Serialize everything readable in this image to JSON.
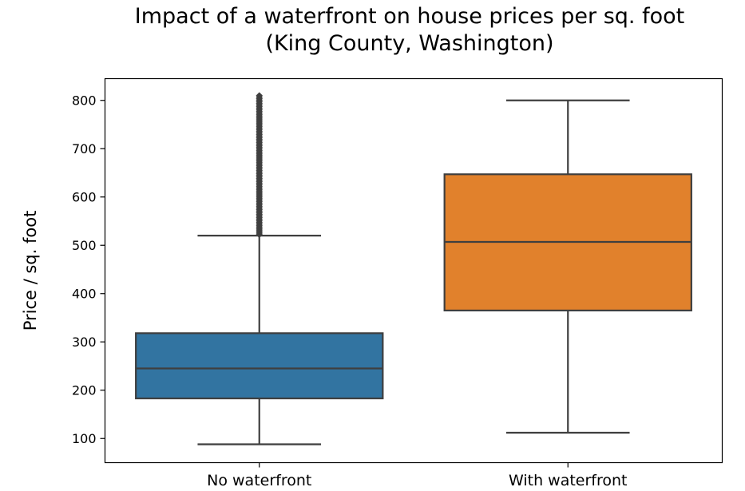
{
  "chart_data": {
    "type": "box",
    "title_lines": [
      "Impact of a waterfront on house prices per sq. foot",
      "(King County, Washington)"
    ],
    "xlabel": "",
    "ylabel": "Price / sq. foot",
    "ylim": [
      50,
      845
    ],
    "yticks": [
      100,
      200,
      300,
      400,
      500,
      600,
      700,
      800
    ],
    "grid": false,
    "legend": "none",
    "categories": [
      "No waterfront",
      "With waterfront"
    ],
    "boxes": [
      {
        "category": "No waterfront",
        "color": "#3274a1",
        "whisker_low": 88,
        "q1": 183,
        "median": 245,
        "q3": 318,
        "whisker_high": 520,
        "outliers_range": [
          522,
          810
        ],
        "outlier_count": 90
      },
      {
        "category": "With waterfront",
        "color": "#e1812c",
        "whisker_low": 112,
        "q1": 365,
        "median": 507,
        "q3": 647,
        "whisker_high": 800,
        "outliers_range": null,
        "outlier_count": 0
      }
    ],
    "line_color": "#3f3f3f"
  }
}
